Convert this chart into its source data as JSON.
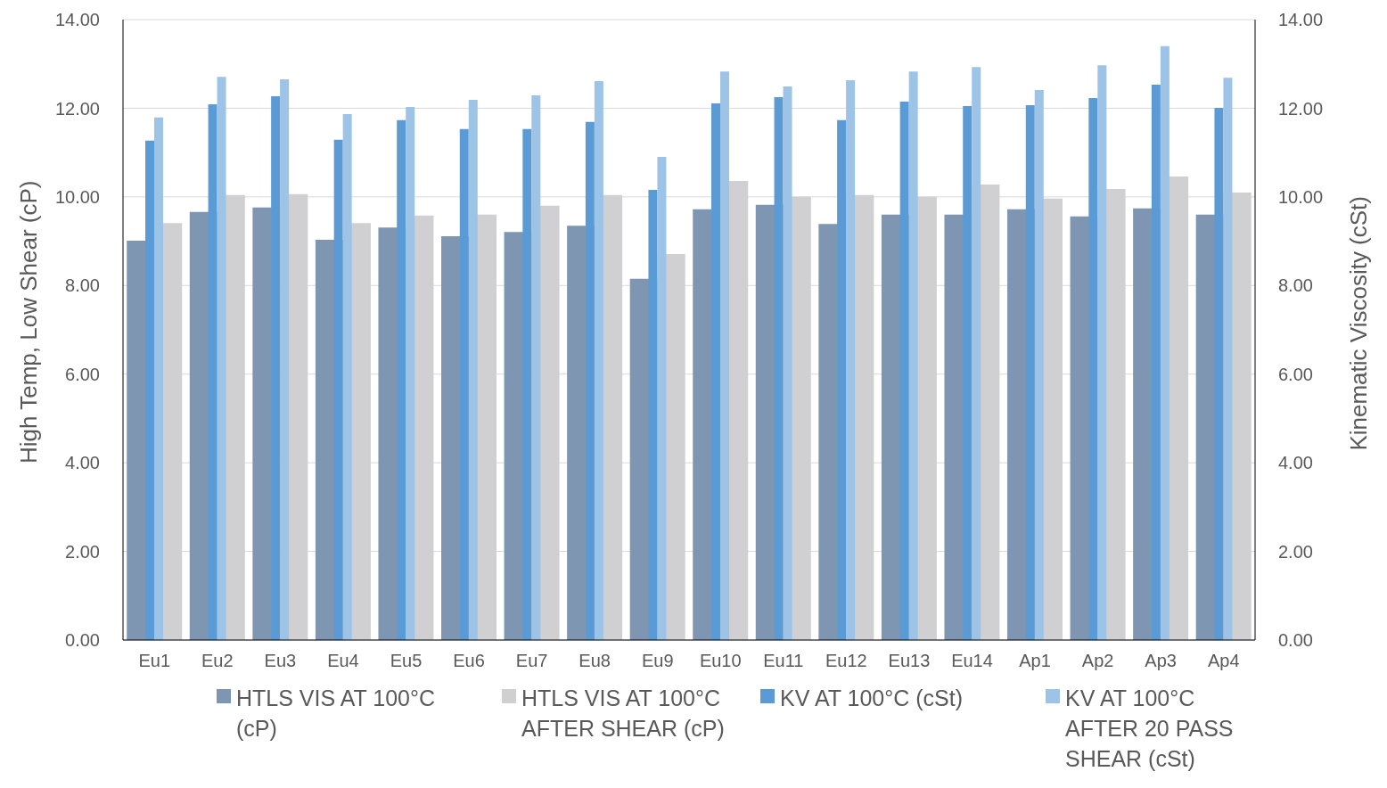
{
  "chart_data": {
    "type": "bar",
    "ylabel": "High Temp, Low Shear (cP)",
    "y2label": "Kinematic Viscosity (cSt)",
    "categories": [
      "Eu1",
      "Eu2",
      "Eu3",
      "Eu4",
      "Eu5",
      "Eu6",
      "Eu7",
      "Eu8",
      "Eu9",
      "Eu10",
      "Eu11",
      "Eu12",
      "Eu13",
      "Eu14",
      "Ap1",
      "Ap2",
      "Ap3",
      "Ap4"
    ],
    "series": [
      {
        "name": "HTLS VIS AT 100°C (cP)",
        "color": "#7f96b2",
        "values": [
          9.01,
          9.66,
          9.76,
          9.03,
          9.31,
          9.11,
          9.21,
          9.35,
          8.15,
          9.72,
          9.82,
          9.39,
          9.6,
          9.6,
          9.72,
          9.56,
          9.74,
          9.6
        ]
      },
      {
        "name": "HTLS VIS AT 100°C AFTER SHEAR (cP)",
        "color": "#d0d0d3",
        "values": [
          9.41,
          10.04,
          10.06,
          9.41,
          9.58,
          9.6,
          9.8,
          10.04,
          8.71,
          10.36,
          10.0,
          10.04,
          10.0,
          10.28,
          9.96,
          10.18,
          10.46,
          10.1
        ]
      },
      {
        "name": "KV AT 100°C (cSt)",
        "color": "#5b9bd5",
        "axis": "y2",
        "values": [
          11.27,
          12.09,
          12.27,
          11.29,
          11.73,
          11.53,
          11.53,
          11.69,
          10.16,
          12.11,
          12.25,
          11.73,
          12.15,
          12.05,
          12.07,
          12.23,
          12.53,
          12.01
        ]
      },
      {
        "name": "KV AT 100°C AFTER 20 PASS SHEAR (cSt)",
        "color": "#9dc3e6",
        "axis": "y2",
        "values": [
          11.79,
          12.71,
          12.65,
          11.87,
          12.03,
          12.19,
          12.29,
          12.61,
          10.9,
          12.83,
          12.49,
          12.63,
          12.83,
          12.93,
          12.41,
          12.97,
          13.4,
          12.69
        ]
      }
    ],
    "ylim": [
      0,
      14
    ],
    "yticks": [
      {
        "value": 0,
        "label": "0.00"
      },
      {
        "value": 2,
        "label": "2.00"
      },
      {
        "value": 4,
        "label": "4.00"
      },
      {
        "value": 6,
        "label": "6.00"
      },
      {
        "value": 8,
        "label": "8.00"
      },
      {
        "value": 10,
        "label": "10.00"
      },
      {
        "value": 12,
        "label": "12.00"
      },
      {
        "value": 14,
        "label": "14.00"
      }
    ],
    "y2lim": [
      0,
      14
    ],
    "y2ticks": [
      {
        "value": 0,
        "label": "0.00"
      },
      {
        "value": 2,
        "label": "2.00"
      },
      {
        "value": 4,
        "label": "4.00"
      },
      {
        "value": 6,
        "label": "6.00"
      },
      {
        "value": 8,
        "label": "8.00"
      },
      {
        "value": 10,
        "label": "10.00"
      },
      {
        "value": 12,
        "label": "12.00"
      },
      {
        "value": 14,
        "label": "14.00"
      }
    ],
    "grid": "y",
    "legend": "bottom"
  }
}
